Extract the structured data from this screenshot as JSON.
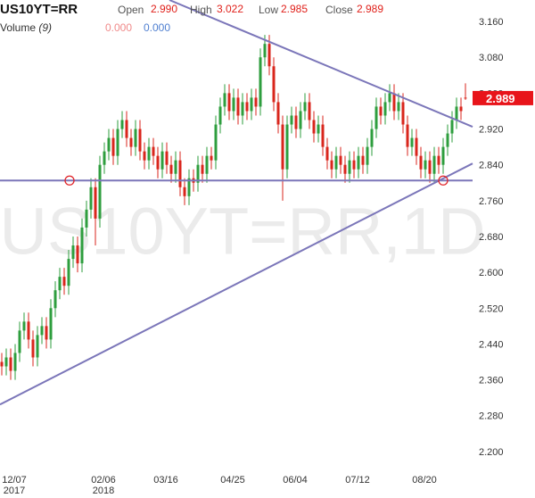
{
  "chart_data": {
    "type": "candlestick",
    "title": "US10YT=RR",
    "ohlc_header": [
      {
        "label": "Open",
        "value": "2.990"
      },
      {
        "label": "High",
        "value": "3.022"
      },
      {
        "label": "Low",
        "value": "2.985"
      },
      {
        "label": "Close",
        "value": "2.989"
      }
    ],
    "volume_label": "Volume",
    "volume_param": "(9)",
    "volume_values": [
      "0.000",
      "0.000"
    ],
    "watermark": "US10YT=RR,1D",
    "last_label": "2.989",
    "up_color": "#2e9e3e",
    "down_color": "#d9261c",
    "line_color": "#7b76b9",
    "marker_color": "#e0252a",
    "xlim": [
      -0.4,
      119.6
    ],
    "ylim": [
      2.142,
      3.208
    ],
    "yticks": [
      {
        "value": 3.16,
        "label": "3.160"
      },
      {
        "value": 3.08,
        "label": "3.080"
      },
      {
        "value": 3.0,
        "label": "3.000"
      },
      {
        "value": 2.92,
        "label": "2.920"
      },
      {
        "value": 2.84,
        "label": "2.840"
      },
      {
        "value": 2.76,
        "label": "2.760"
      },
      {
        "value": 2.68,
        "label": "2.680"
      },
      {
        "value": 2.6,
        "label": "2.600"
      },
      {
        "value": 2.52,
        "label": "2.520"
      },
      {
        "value": 2.44,
        "label": "2.440"
      },
      {
        "value": 2.36,
        "label": "2.360"
      },
      {
        "value": 2.28,
        "label": "2.280"
      },
      {
        "value": 2.2,
        "label": "2.200"
      }
    ],
    "xticks": [
      {
        "value": 2,
        "label": "12/07"
      },
      {
        "value": 22,
        "label": "02/06"
      },
      {
        "value": 36,
        "label": "03/16"
      },
      {
        "value": 51,
        "label": "04/25"
      },
      {
        "value": 65,
        "label": "06/04"
      },
      {
        "value": 79,
        "label": "07/12"
      },
      {
        "value": 94,
        "label": "08/20"
      }
    ],
    "xtick_years": [
      {
        "value": 2,
        "label": "2017"
      },
      {
        "value": 22,
        "label": "2018"
      }
    ],
    "open": [
      2.4,
      2.39,
      2.41,
      2.38,
      2.42,
      2.47,
      2.49,
      2.45,
      2.41,
      2.46,
      2.48,
      2.45,
      2.52,
      2.56,
      2.59,
      2.57,
      2.63,
      2.66,
      2.62,
      2.7,
      2.74,
      2.79,
      2.72,
      2.84,
      2.87,
      2.9,
      2.86,
      2.92,
      2.94,
      2.9,
      2.88,
      2.92,
      2.87,
      2.85,
      2.88,
      2.86,
      2.83,
      2.87,
      2.84,
      2.82,
      2.85,
      2.79,
      2.77,
      2.81,
      2.8,
      2.84,
      2.82,
      2.86,
      2.85,
      2.93,
      2.97,
      3.0,
      2.96,
      2.99,
      2.95,
      2.98,
      2.96,
      2.99,
      2.97,
      3.08,
      3.11,
      3.06,
      2.98,
      2.93,
      2.83,
      2.93,
      2.95,
      2.92,
      2.96,
      2.98,
      2.94,
      2.91,
      2.93,
      2.88,
      2.85,
      2.83,
      2.86,
      2.84,
      2.82,
      2.85,
      2.83,
      2.86,
      2.84,
      2.88,
      2.92,
      2.97,
      2.95,
      2.98,
      3.0,
      2.96,
      2.98,
      2.93,
      2.88,
      2.9,
      2.86,
      2.83,
      2.85,
      2.82,
      2.86,
      2.84,
      2.88,
      2.91,
      2.94,
      2.97,
      2.99
    ],
    "high": [
      2.42,
      2.43,
      2.43,
      2.44,
      2.49,
      2.51,
      2.51,
      2.47,
      2.48,
      2.5,
      2.5,
      2.54,
      2.58,
      2.61,
      2.61,
      2.65,
      2.68,
      2.68,
      2.72,
      2.76,
      2.81,
      2.81,
      2.86,
      2.89,
      2.92,
      2.92,
      2.94,
      2.96,
      2.96,
      2.92,
      2.94,
      2.94,
      2.89,
      2.9,
      2.9,
      2.88,
      2.89,
      2.89,
      2.86,
      2.87,
      2.87,
      2.81,
      2.83,
      2.83,
      2.86,
      2.86,
      2.88,
      2.88,
      2.95,
      2.99,
      3.02,
      3.02,
      3.01,
      3.01,
      3.0,
      3.0,
      3.01,
      3.01,
      3.1,
      3.13,
      3.13,
      3.08,
      3.0,
      2.95,
      2.95,
      2.97,
      2.97,
      2.98,
      3.0,
      3.0,
      2.96,
      2.95,
      2.95,
      2.9,
      2.87,
      2.88,
      2.88,
      2.86,
      2.87,
      2.87,
      2.88,
      2.88,
      2.9,
      2.94,
      2.99,
      2.99,
      3.0,
      3.02,
      3.02,
      3.0,
      3.0,
      2.95,
      2.92,
      2.92,
      2.88,
      2.87,
      2.87,
      2.88,
      2.88,
      2.9,
      2.93,
      2.96,
      2.99,
      2.99,
      3.022
    ],
    "low": [
      2.37,
      2.37,
      2.36,
      2.36,
      2.4,
      2.45,
      2.43,
      2.39,
      2.39,
      2.44,
      2.43,
      2.43,
      2.5,
      2.54,
      2.55,
      2.55,
      2.61,
      2.6,
      2.6,
      2.68,
      2.72,
      2.66,
      2.7,
      2.82,
      2.85,
      2.84,
      2.84,
      2.9,
      2.88,
      2.86,
      2.86,
      2.85,
      2.83,
      2.83,
      2.84,
      2.81,
      2.81,
      2.82,
      2.8,
      2.8,
      2.77,
      2.75,
      2.75,
      2.78,
      2.78,
      2.8,
      2.8,
      2.83,
      2.83,
      2.91,
      2.95,
      2.94,
      2.94,
      2.93,
      2.93,
      2.94,
      2.94,
      2.95,
      2.95,
      3.06,
      3.04,
      2.96,
      2.91,
      2.76,
      2.81,
      2.91,
      2.9,
      2.9,
      2.94,
      2.92,
      2.89,
      2.89,
      2.86,
      2.83,
      2.81,
      2.81,
      2.82,
      2.8,
      2.8,
      2.81,
      2.81,
      2.82,
      2.82,
      2.86,
      2.9,
      2.93,
      2.93,
      2.96,
      2.94,
      2.94,
      2.91,
      2.86,
      2.86,
      2.84,
      2.81,
      2.81,
      2.8,
      2.8,
      2.82,
      2.82,
      2.86,
      2.89,
      2.92,
      2.94,
      2.985
    ],
    "close": [
      2.39,
      2.41,
      2.38,
      2.42,
      2.47,
      2.49,
      2.45,
      2.41,
      2.46,
      2.48,
      2.45,
      2.52,
      2.56,
      2.59,
      2.57,
      2.63,
      2.66,
      2.62,
      2.7,
      2.74,
      2.79,
      2.72,
      2.84,
      2.87,
      2.9,
      2.86,
      2.92,
      2.94,
      2.9,
      2.88,
      2.92,
      2.87,
      2.85,
      2.88,
      2.86,
      2.83,
      2.87,
      2.84,
      2.82,
      2.85,
      2.79,
      2.77,
      2.81,
      2.8,
      2.84,
      2.82,
      2.86,
      2.85,
      2.93,
      2.97,
      3.0,
      2.96,
      2.99,
      2.95,
      2.98,
      2.96,
      2.99,
      2.97,
      3.08,
      3.11,
      3.06,
      2.98,
      2.93,
      2.83,
      2.93,
      2.95,
      2.92,
      2.96,
      2.98,
      2.94,
      2.91,
      2.93,
      2.88,
      2.85,
      2.83,
      2.86,
      2.84,
      2.82,
      2.85,
      2.83,
      2.86,
      2.84,
      2.88,
      2.92,
      2.97,
      2.95,
      2.98,
      3.0,
      2.96,
      2.98,
      2.93,
      2.88,
      2.9,
      2.86,
      2.83,
      2.85,
      2.82,
      2.86,
      2.84,
      2.88,
      2.91,
      2.94,
      2.97,
      2.96,
      2.989
    ],
    "lines": [
      {
        "x": [
          37.6,
          105.6
        ],
        "y": [
          3.208,
          2.925
        ]
      },
      {
        "x": [
          -0.4,
          105.6
        ],
        "y": [
          2.805,
          2.805
        ]
      },
      {
        "x": [
          -0.4,
          105.6
        ],
        "y": [
          2.305,
          2.843
        ]
      }
    ],
    "markers": [
      {
        "x": 15.2,
        "y": 2.805
      },
      {
        "x": 99,
        "y": 2.805
      }
    ]
  }
}
